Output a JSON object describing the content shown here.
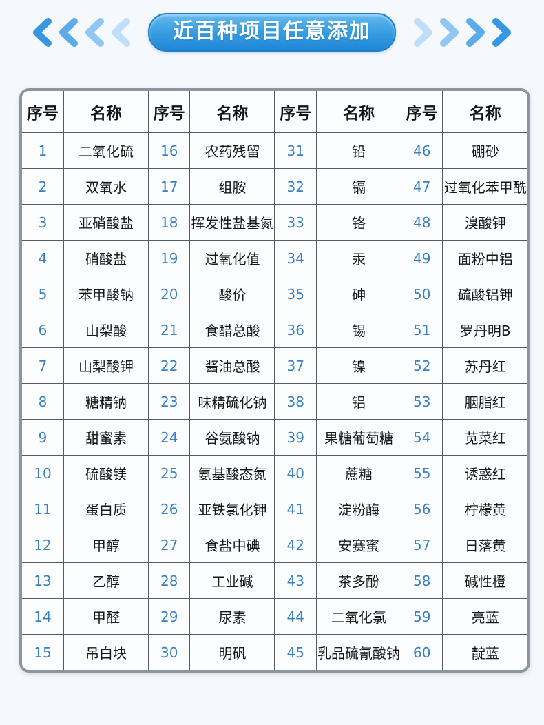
{
  "banner": {
    "title": "近百种项目任意添加",
    "left_chevron_count": 4,
    "right_chevron_count": 4
  },
  "colors": {
    "page_background": "#f5f8fc",
    "pill_gradient_top": "#66bbee",
    "pill_gradient_bottom": "#1e86d5",
    "pill_border": "#1b7fcb",
    "chevron_shades": [
      "#3697e3",
      "#5cacea",
      "#8fc6f2",
      "#bedef9"
    ],
    "table_frame": "#8e949d",
    "cell_border": "#565b63",
    "number_text": "#3c80c4",
    "name_text": "#17181a"
  },
  "table": {
    "header_labels": [
      "序号",
      "名称",
      "序号",
      "名称",
      "序号",
      "名称",
      "序号",
      "名称"
    ],
    "rows": [
      [
        {
          "no": "1",
          "name": "二氧化硫"
        },
        {
          "no": "16",
          "name": "农药残留"
        },
        {
          "no": "31",
          "name": "铅"
        },
        {
          "no": "46",
          "name": "硼砂"
        }
      ],
      [
        {
          "no": "2",
          "name": "双氧水"
        },
        {
          "no": "17",
          "name": "组胺"
        },
        {
          "no": "32",
          "name": "镉"
        },
        {
          "no": "47",
          "name": "过氧化苯甲酰"
        }
      ],
      [
        {
          "no": "3",
          "name": "亚硝酸盐"
        },
        {
          "no": "18",
          "name": "挥发性盐基氮"
        },
        {
          "no": "33",
          "name": "铬"
        },
        {
          "no": "48",
          "name": "溴酸钾"
        }
      ],
      [
        {
          "no": "4",
          "name": "硝酸盐"
        },
        {
          "no": "19",
          "name": "过氧化值"
        },
        {
          "no": "34",
          "name": "汞"
        },
        {
          "no": "49",
          "name": "面粉中铝"
        }
      ],
      [
        {
          "no": "5",
          "name": "苯甲酸钠"
        },
        {
          "no": "20",
          "name": "酸价"
        },
        {
          "no": "35",
          "name": "砷"
        },
        {
          "no": "50",
          "name": "硫酸铝钾"
        }
      ],
      [
        {
          "no": "6",
          "name": "山梨酸"
        },
        {
          "no": "21",
          "name": "食醋总酸"
        },
        {
          "no": "36",
          "name": "锡"
        },
        {
          "no": "51",
          "name": "罗丹明B"
        }
      ],
      [
        {
          "no": "7",
          "name": "山梨酸钾"
        },
        {
          "no": "22",
          "name": "酱油总酸"
        },
        {
          "no": "37",
          "name": "镍"
        },
        {
          "no": "52",
          "name": "苏丹红"
        }
      ],
      [
        {
          "no": "8",
          "name": "糖精钠"
        },
        {
          "no": "23",
          "name": "味精硫化钠"
        },
        {
          "no": "38",
          "name": "铝"
        },
        {
          "no": "53",
          "name": "胭脂红"
        }
      ],
      [
        {
          "no": "9",
          "name": "甜蜜素"
        },
        {
          "no": "24",
          "name": "谷氨酸钠"
        },
        {
          "no": "39",
          "name": "果糖葡萄糖"
        },
        {
          "no": "54",
          "name": "苋菜红"
        }
      ],
      [
        {
          "no": "10",
          "name": "硫酸镁"
        },
        {
          "no": "25",
          "name": "氨基酸态氮"
        },
        {
          "no": "40",
          "name": "蔗糖"
        },
        {
          "no": "55",
          "name": "诱惑红"
        }
      ],
      [
        {
          "no": "11",
          "name": "蛋白质"
        },
        {
          "no": "26",
          "name": "亚铁氯化钾"
        },
        {
          "no": "41",
          "name": "淀粉酶"
        },
        {
          "no": "56",
          "name": "柠檬黄"
        }
      ],
      [
        {
          "no": "12",
          "name": "甲醇"
        },
        {
          "no": "27",
          "name": "食盐中碘"
        },
        {
          "no": "42",
          "name": "安赛蜜"
        },
        {
          "no": "57",
          "name": "日落黄"
        }
      ],
      [
        {
          "no": "13",
          "name": "乙醇"
        },
        {
          "no": "28",
          "name": "工业碱"
        },
        {
          "no": "43",
          "name": "茶多酚"
        },
        {
          "no": "58",
          "name": "碱性橙"
        }
      ],
      [
        {
          "no": "14",
          "name": "甲醛"
        },
        {
          "no": "29",
          "name": "尿素"
        },
        {
          "no": "44",
          "name": "二氧化氯"
        },
        {
          "no": "59",
          "name": "亮蓝"
        }
      ],
      [
        {
          "no": "15",
          "name": "吊白块"
        },
        {
          "no": "30",
          "name": "明矾"
        },
        {
          "no": "45",
          "name": "乳品硫氰酸钠"
        },
        {
          "no": "60",
          "name": "靛蓝"
        }
      ]
    ]
  }
}
